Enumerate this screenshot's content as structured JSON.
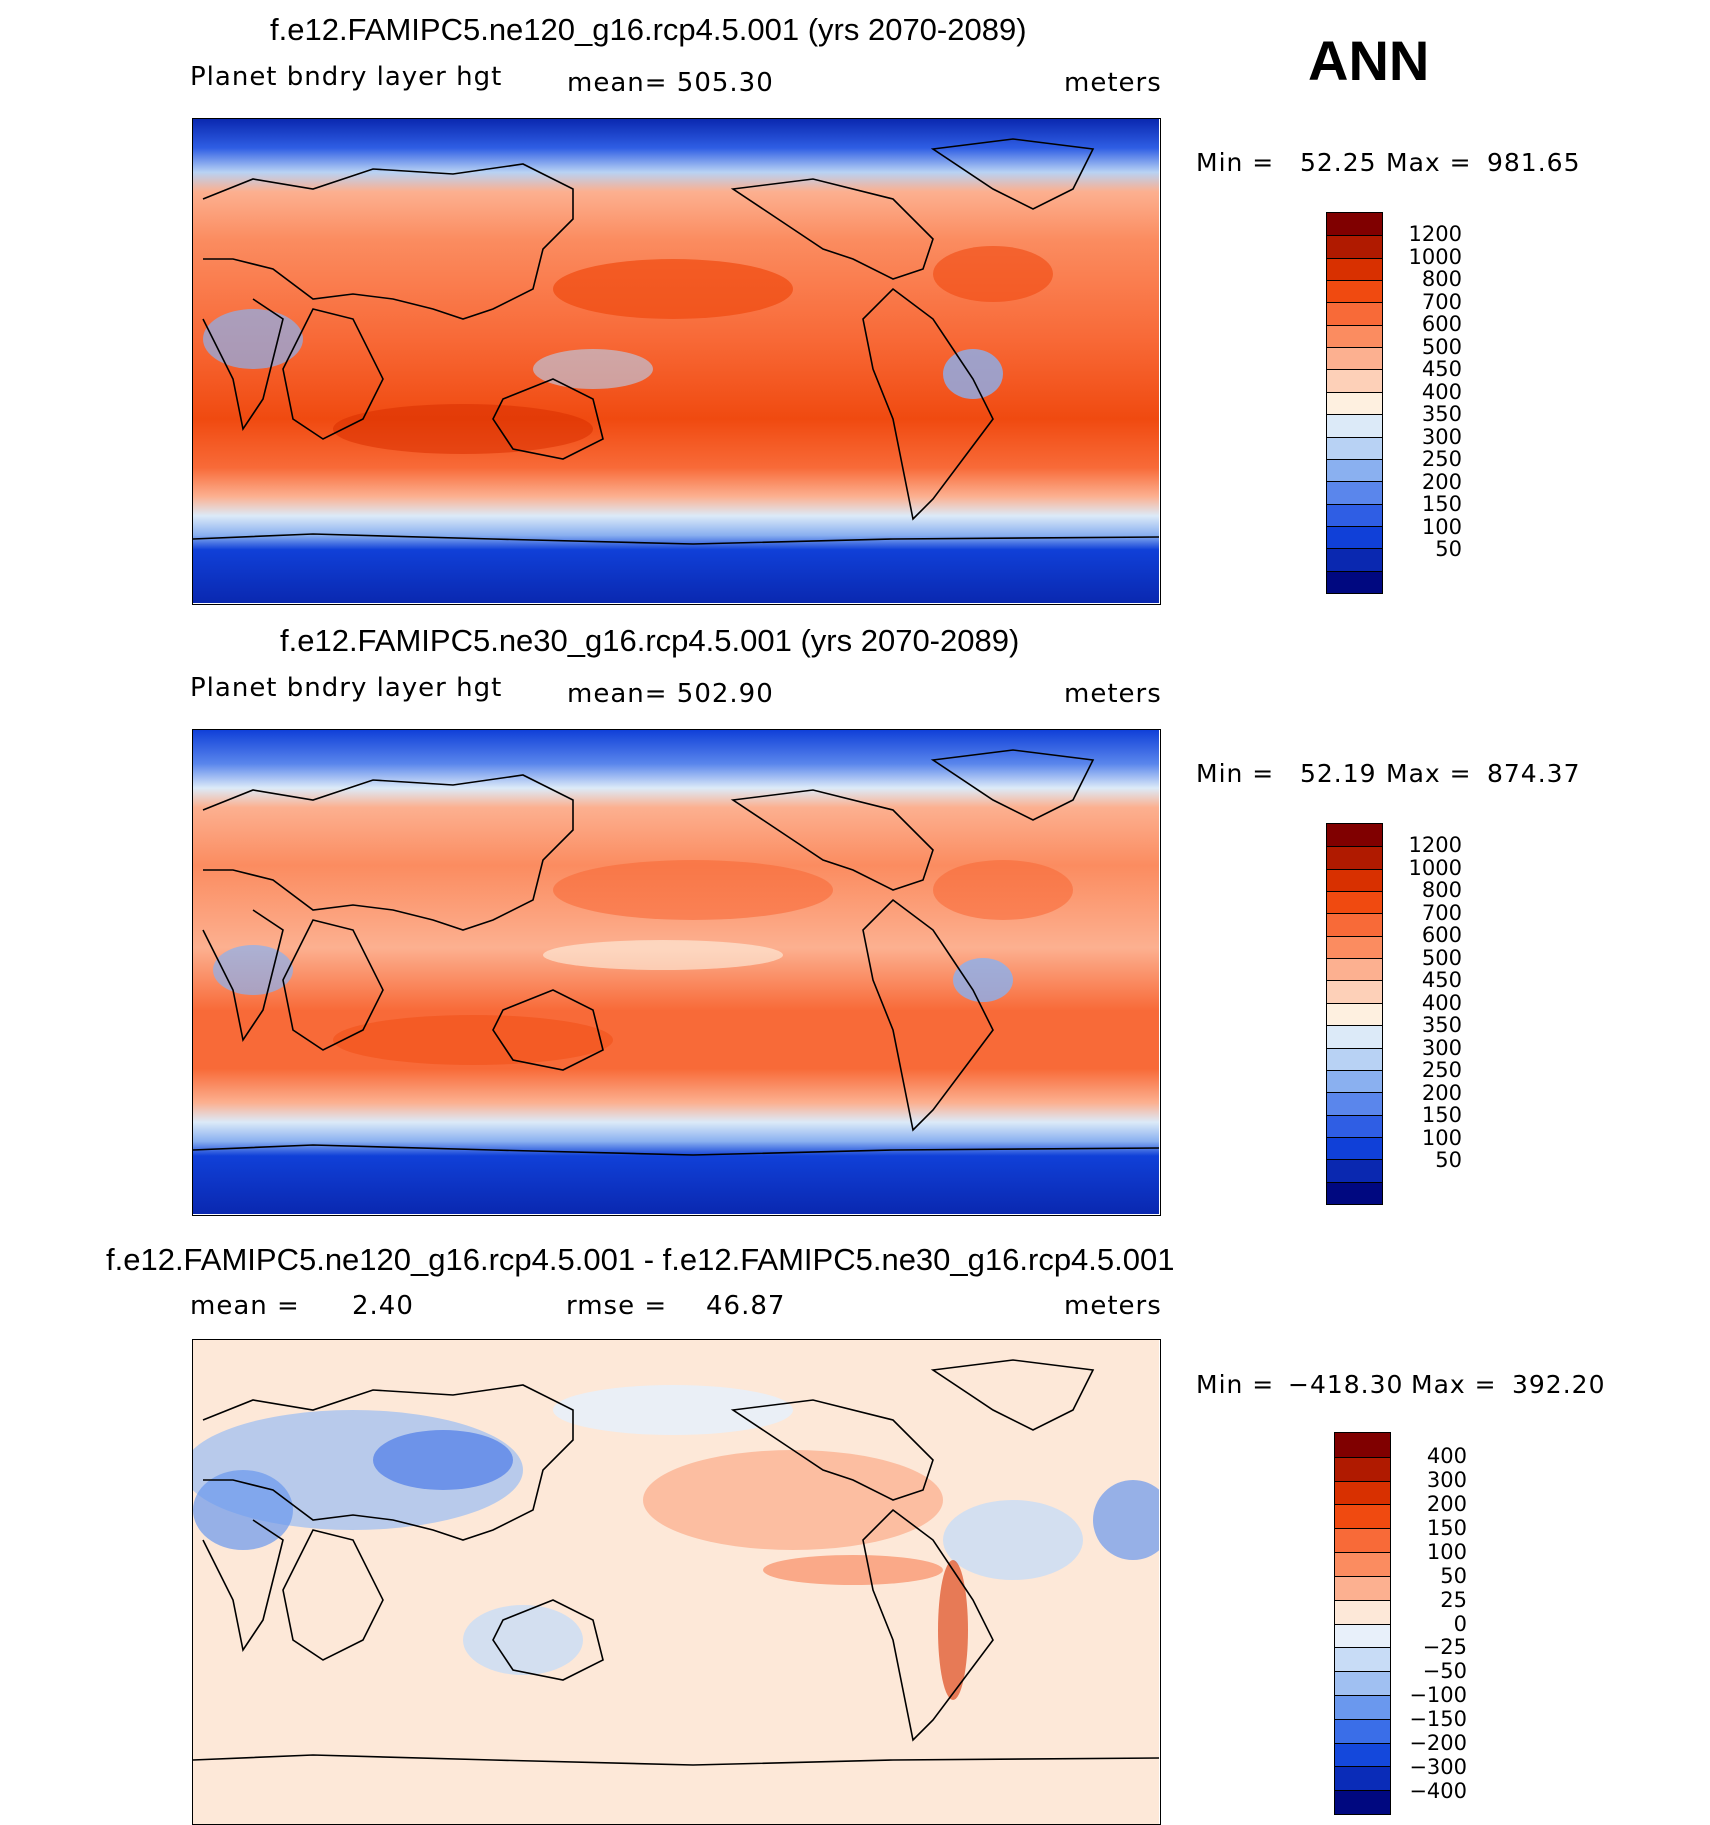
{
  "season": "ANN",
  "units": "meters",
  "chart_data": [
    {
      "type": "heatmap",
      "title": "f.e12.FAMIPC5.ne120_g16.rcp4.5.001 (yrs 2070-2089)",
      "variable": "Planet bndry layer hgt",
      "stat_text": "mean= 505.30",
      "mean": 505.3,
      "units": "meters",
      "min_label": "Min =",
      "min": "52.25",
      "max_label": "Max =",
      "max": "981.65",
      "levels": [
        "1200",
        "1000",
        "800",
        "700",
        "600",
        "500",
        "450",
        "400",
        "350",
        "300",
        "250",
        "200",
        "150",
        "100",
        "50"
      ],
      "colors": [
        "#800000",
        "#b01a00",
        "#d83000",
        "#f04a10",
        "#f86a38",
        "#fb8c60",
        "#fcb090",
        "#fdd0b8",
        "#fef0e0",
        "#dceaf8",
        "#b8d2f4",
        "#8ab0f0",
        "#5a86ec",
        "#2f5ee4",
        "#1040d8",
        "#0a28b0",
        "#000880"
      ]
    },
    {
      "type": "heatmap",
      "title": "f.e12.FAMIPC5.ne30_g16.rcp4.5.001 (yrs 2070-2089)",
      "variable": "Planet bndry layer hgt",
      "stat_text": "mean= 502.90",
      "mean": 502.9,
      "units": "meters",
      "min_label": "Min =",
      "min": "52.19",
      "max_label": "Max =",
      "max": "874.37",
      "levels": [
        "1200",
        "1000",
        "800",
        "700",
        "600",
        "500",
        "450",
        "400",
        "350",
        "300",
        "250",
        "200",
        "150",
        "100",
        "50"
      ],
      "colors": [
        "#800000",
        "#b01a00",
        "#d83000",
        "#f04a10",
        "#f86a38",
        "#fb8c60",
        "#fcb090",
        "#fdd0b8",
        "#fef0e0",
        "#dceaf8",
        "#b8d2f4",
        "#8ab0f0",
        "#5a86ec",
        "#2f5ee4",
        "#1040d8",
        "#0a28b0",
        "#000880"
      ]
    },
    {
      "type": "heatmap",
      "title": "f.e12.FAMIPC5.ne120_g16.rcp4.5.001 - f.e12.FAMIPC5.ne30_g16.rcp4.5.001",
      "mean_text": "mean =",
      "mean": "2.40",
      "rmse_text": "rmse =",
      "rmse": "46.87",
      "units": "meters",
      "min_label": "Min =",
      "min": "−418.30",
      "max_label": "Max =",
      "max": "392.20",
      "levels": [
        "400",
        "300",
        "200",
        "150",
        "100",
        "50",
        "25",
        "0",
        "−25",
        "−50",
        "−100",
        "−150",
        "−200",
        "−300",
        "−400"
      ],
      "colors": [
        "#800000",
        "#b01a00",
        "#d83000",
        "#f04a10",
        "#f86a38",
        "#fb8c60",
        "#fcb090",
        "#fde8d8",
        "#e8f0fa",
        "#c8dcf6",
        "#a0c0f2",
        "#6a98ee",
        "#3a6ee8",
        "#1448dc",
        "#0a2cb8",
        "#000880"
      ]
    }
  ]
}
